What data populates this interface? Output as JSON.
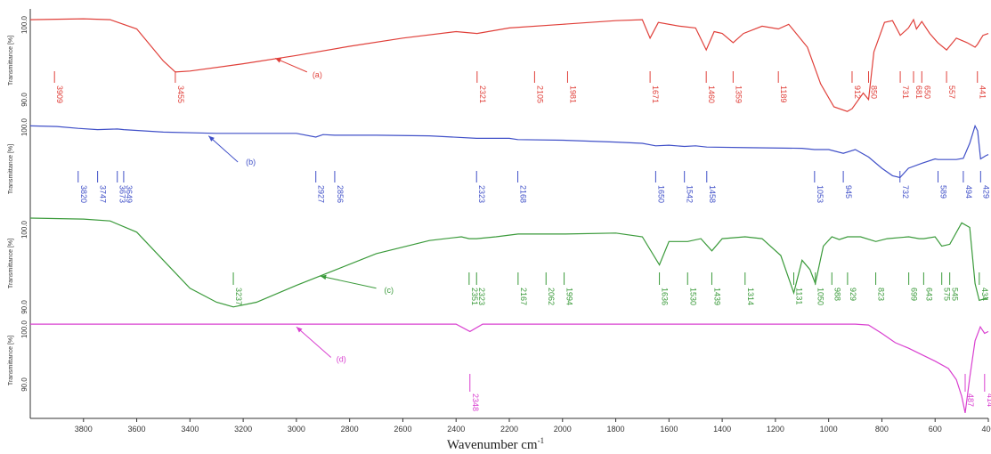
{
  "chart_data": {
    "type": "line",
    "xlabel": "Wavenumber cm",
    "xlabel_superscript": "-1",
    "ylabel": "Transmittance [%]",
    "x_reversed": true,
    "xlim": [
      4000,
      400
    ],
    "x_ticks": [
      "3800",
      "3600",
      "3400",
      "3200",
      "3000",
      "2800",
      "2600",
      "2400",
      "2200",
      "2000",
      "1800",
      "1600",
      "1400",
      "1200",
      "1000",
      "800",
      "600",
      "400"
    ],
    "panels": [
      {
        "series_name": "(a)",
        "color": "#e0403a",
        "y_tick_top": "100.0",
        "y_tick_bottom": "90.0",
        "curve": [
          [
            4000,
            0.05
          ],
          [
            3800,
            0.04
          ],
          [
            3700,
            0.05
          ],
          [
            3600,
            0.15
          ],
          [
            3500,
            0.5
          ],
          [
            3455,
            0.62
          ],
          [
            3400,
            0.61
          ],
          [
            3200,
            0.53
          ],
          [
            3000,
            0.44
          ],
          [
            2800,
            0.34
          ],
          [
            2600,
            0.25
          ],
          [
            2400,
            0.18
          ],
          [
            2321,
            0.2
          ],
          [
            2200,
            0.14
          ],
          [
            2000,
            0.1
          ],
          [
            1800,
            0.06
          ],
          [
            1700,
            0.05
          ],
          [
            1671,
            0.25
          ],
          [
            1640,
            0.08
          ],
          [
            1560,
            0.12
          ],
          [
            1500,
            0.14
          ],
          [
            1460,
            0.38
          ],
          [
            1430,
            0.18
          ],
          [
            1400,
            0.2
          ],
          [
            1359,
            0.3
          ],
          [
            1320,
            0.2
          ],
          [
            1250,
            0.12
          ],
          [
            1189,
            0.15
          ],
          [
            1150,
            0.1
          ],
          [
            1080,
            0.35
          ],
          [
            1030,
            0.75
          ],
          [
            980,
            1.0
          ],
          [
            930,
            1.05
          ],
          [
            912,
            1.02
          ],
          [
            870,
            0.85
          ],
          [
            850,
            0.92
          ],
          [
            830,
            0.4
          ],
          [
            790,
            0.08
          ],
          [
            760,
            0.06
          ],
          [
            731,
            0.22
          ],
          [
            700,
            0.14
          ],
          [
            681,
            0.05
          ],
          [
            670,
            0.15
          ],
          [
            650,
            0.07
          ],
          [
            620,
            0.2
          ],
          [
            590,
            0.3
          ],
          [
            557,
            0.38
          ],
          [
            520,
            0.25
          ],
          [
            480,
            0.3
          ],
          [
            450,
            0.35
          ],
          [
            441,
            0.32
          ],
          [
            420,
            0.22
          ],
          [
            400,
            0.2
          ]
        ],
        "peaks": [
          "3909",
          "3455",
          "2321",
          "2105",
          "1981",
          "1671",
          "1460",
          "1359",
          "1189",
          "912",
          "850",
          "731",
          "681",
          "650",
          "557",
          "441"
        ],
        "peak_x": [
          3909,
          3455,
          2321,
          2105,
          1981,
          1671,
          1460,
          1359,
          1189,
          912,
          850,
          731,
          681,
          650,
          557,
          441
        ]
      },
      {
        "series_name": "(b)",
        "color": "#4050c8",
        "y_tick_top": "100.0",
        "y_tick_bottom": "",
        "curve": [
          [
            4000,
            0.02
          ],
          [
            3900,
            0.03
          ],
          [
            3820,
            0.06
          ],
          [
            3747,
            0.08
          ],
          [
            3673,
            0.07
          ],
          [
            3649,
            0.08
          ],
          [
            3500,
            0.12
          ],
          [
            3300,
            0.14
          ],
          [
            3000,
            0.14
          ],
          [
            2927,
            0.2
          ],
          [
            2900,
            0.16
          ],
          [
            2856,
            0.17
          ],
          [
            2700,
            0.17
          ],
          [
            2500,
            0.18
          ],
          [
            2323,
            0.22
          ],
          [
            2200,
            0.22
          ],
          [
            2168,
            0.24
          ],
          [
            2000,
            0.25
          ],
          [
            1800,
            0.28
          ],
          [
            1700,
            0.3
          ],
          [
            1650,
            0.34
          ],
          [
            1600,
            0.33
          ],
          [
            1542,
            0.35
          ],
          [
            1500,
            0.34
          ],
          [
            1458,
            0.36
          ],
          [
            1300,
            0.37
          ],
          [
            1100,
            0.38
          ],
          [
            1053,
            0.4
          ],
          [
            1000,
            0.4
          ],
          [
            945,
            0.46
          ],
          [
            900,
            0.4
          ],
          [
            850,
            0.52
          ],
          [
            800,
            0.7
          ],
          [
            760,
            0.82
          ],
          [
            732,
            0.85
          ],
          [
            700,
            0.7
          ],
          [
            650,
            0.62
          ],
          [
            600,
            0.55
          ],
          [
            589,
            0.56
          ],
          [
            520,
            0.56
          ],
          [
            494,
            0.54
          ],
          [
            470,
            0.3
          ],
          [
            450,
            0.02
          ],
          [
            440,
            0.1
          ],
          [
            429,
            0.55
          ],
          [
            410,
            0.5
          ],
          [
            400,
            0.48
          ]
        ],
        "peaks": [
          "3820",
          "3747",
          "3673",
          "3649",
          "2927",
          "2856",
          "2323",
          "2168",
          "1650",
          "1542",
          "1458",
          "1053",
          "945",
          "732",
          "589",
          "494",
          "429"
        ],
        "peak_x": [
          3820,
          3747,
          3673,
          3649,
          2927,
          2856,
          2323,
          2168,
          1650,
          1542,
          1458,
          1053,
          945,
          732,
          589,
          494,
          429
        ]
      },
      {
        "series_name": "(c)",
        "color": "#3a9a3a",
        "y_tick_top": "100.0",
        "y_tick_bottom": "90.0",
        "curve": [
          [
            4000,
            0.0
          ],
          [
            3800,
            0.01
          ],
          [
            3700,
            0.03
          ],
          [
            3600,
            0.15
          ],
          [
            3500,
            0.45
          ],
          [
            3400,
            0.75
          ],
          [
            3300,
            0.9
          ],
          [
            3237,
            0.95
          ],
          [
            3150,
            0.9
          ],
          [
            3000,
            0.72
          ],
          [
            2850,
            0.55
          ],
          [
            2700,
            0.38
          ],
          [
            2500,
            0.24
          ],
          [
            2380,
            0.2
          ],
          [
            2351,
            0.22
          ],
          [
            2323,
            0.22
          ],
          [
            2250,
            0.2
          ],
          [
            2167,
            0.17
          ],
          [
            2062,
            0.17
          ],
          [
            1994,
            0.17
          ],
          [
            1800,
            0.16
          ],
          [
            1700,
            0.2
          ],
          [
            1636,
            0.5
          ],
          [
            1600,
            0.25
          ],
          [
            1530,
            0.25
          ],
          [
            1480,
            0.22
          ],
          [
            1439,
            0.35
          ],
          [
            1400,
            0.22
          ],
          [
            1314,
            0.2
          ],
          [
            1250,
            0.22
          ],
          [
            1180,
            0.4
          ],
          [
            1131,
            0.8
          ],
          [
            1100,
            0.45
          ],
          [
            1070,
            0.55
          ],
          [
            1050,
            0.7
          ],
          [
            1020,
            0.3
          ],
          [
            988,
            0.2
          ],
          [
            960,
            0.23
          ],
          [
            929,
            0.2
          ],
          [
            880,
            0.2
          ],
          [
            823,
            0.25
          ],
          [
            780,
            0.22
          ],
          [
            699,
            0.2
          ],
          [
            660,
            0.22
          ],
          [
            643,
            0.22
          ],
          [
            600,
            0.2
          ],
          [
            575,
            0.3
          ],
          [
            545,
            0.28
          ],
          [
            500,
            0.05
          ],
          [
            470,
            0.1
          ],
          [
            450,
            0.7
          ],
          [
            434,
            0.88
          ],
          [
            400,
            0.85
          ]
        ],
        "peaks": [
          "3237",
          "2351",
          "2323",
          "2167",
          "2062",
          "1994",
          "1636",
          "1530",
          "1439",
          "1314",
          "1131",
          "1050",
          "988",
          "929",
          "823",
          "699",
          "643",
          "575",
          "545",
          "434"
        ],
        "peak_x": [
          3237,
          2351,
          2323,
          2167,
          2062,
          1994,
          1636,
          1530,
          1439,
          1314,
          1131,
          1050,
          988,
          929,
          823,
          699,
          643,
          575,
          545,
          434
        ]
      },
      {
        "series_name": "(d)",
        "color": "#d940d0",
        "y_tick_top": "100.0",
        "y_tick_bottom": "90.0",
        "curve": [
          [
            4000,
            0.02
          ],
          [
            3600,
            0.02
          ],
          [
            3200,
            0.02
          ],
          [
            2800,
            0.02
          ],
          [
            2400,
            0.02
          ],
          [
            2348,
            0.1
          ],
          [
            2300,
            0.02
          ],
          [
            2000,
            0.02
          ],
          [
            1600,
            0.02
          ],
          [
            1200,
            0.02
          ],
          [
            900,
            0.02
          ],
          [
            850,
            0.03
          ],
          [
            800,
            0.12
          ],
          [
            750,
            0.22
          ],
          [
            700,
            0.28
          ],
          [
            650,
            0.35
          ],
          [
            600,
            0.42
          ],
          [
            550,
            0.5
          ],
          [
            520,
            0.62
          ],
          [
            500,
            0.8
          ],
          [
            487,
            0.98
          ],
          [
            470,
            0.6
          ],
          [
            450,
            0.2
          ],
          [
            430,
            0.05
          ],
          [
            414,
            0.12
          ],
          [
            400,
            0.1
          ]
        ],
        "peaks": [
          "2348",
          "487",
          "414"
        ],
        "peak_x": [
          2348,
          487,
          414
        ]
      }
    ]
  }
}
